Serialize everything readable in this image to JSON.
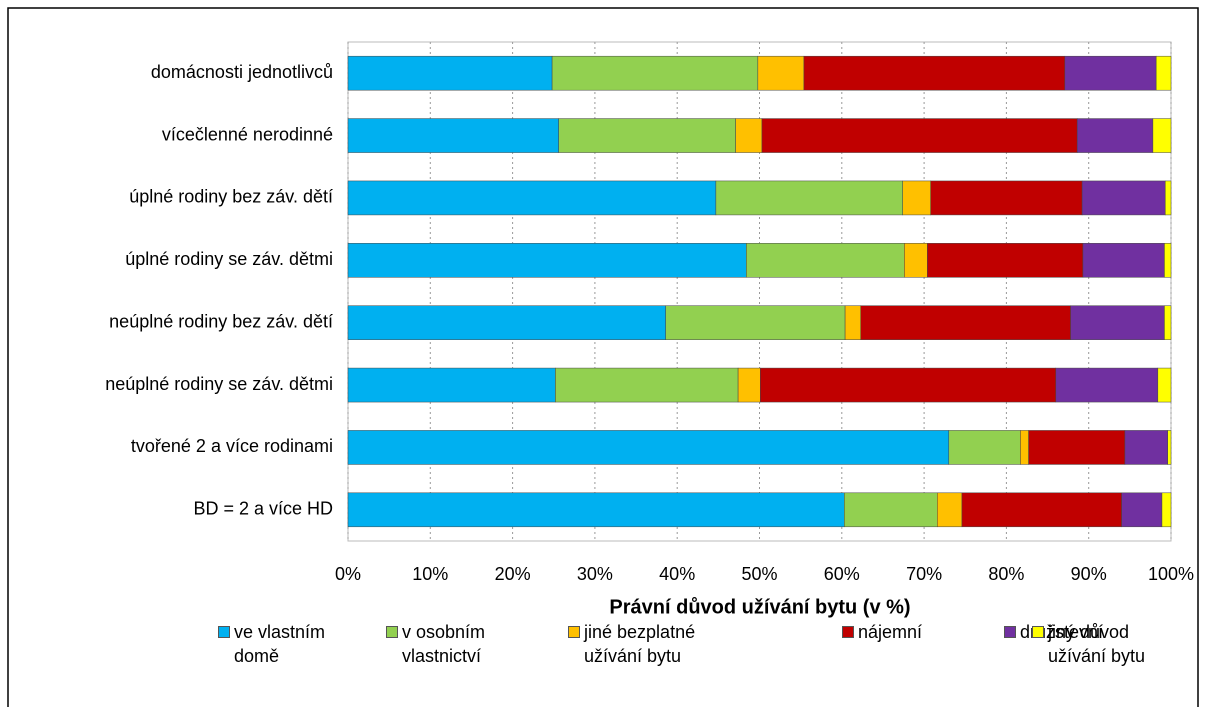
{
  "chart_data": {
    "type": "stacked-bar",
    "xlabel": "Právní důvod užívání bytu (v %)",
    "categories": [
      "domácnosti jednotlivců",
      "vícečlenné nerodinné",
      "úplné rodiny bez záv. dětí",
      "úplné rodiny se záv. dětmi",
      "neúplné rodiny bez záv. dětí",
      "neúplné rodiny se záv. dětmi",
      "tvořené 2 a více rodinami",
      "BD = 2 a více HD"
    ],
    "series": [
      {
        "name": "ve vlastním domě",
        "color": "#00b0f0",
        "values": [
          24.8,
          25.6,
          44.7,
          48.4,
          38.6,
          25.2,
          73.0,
          60.3
        ]
      },
      {
        "name": "v osobním vlastnictví",
        "color": "#92d050",
        "values": [
          25.0,
          21.5,
          22.7,
          19.2,
          21.8,
          22.2,
          8.7,
          11.3
        ]
      },
      {
        "name": "jiné bezplatné užívání bytu",
        "color": "#ffc000",
        "values": [
          5.6,
          3.2,
          3.4,
          2.8,
          1.9,
          2.7,
          1.0,
          3.0
        ]
      },
      {
        "name": "nájemní",
        "color": "#c00000",
        "values": [
          31.7,
          38.3,
          18.4,
          18.9,
          25.5,
          35.9,
          11.7,
          19.4
        ]
      },
      {
        "name": "družstevní",
        "color": "#7030a0",
        "values": [
          11.1,
          9.2,
          10.1,
          9.9,
          11.4,
          12.4,
          5.2,
          4.9
        ]
      },
      {
        "name": "jiný důvod užívání bytu",
        "color": "#ffff00",
        "values": [
          1.8,
          2.2,
          0.7,
          0.8,
          0.8,
          1.6,
          0.4,
          1.1
        ]
      }
    ],
    "xlim": [
      0,
      100
    ],
    "xticks": [
      {
        "value": 0,
        "label": "0%"
      },
      {
        "value": 10,
        "label": "10%"
      },
      {
        "value": 20,
        "label": "20%"
      },
      {
        "value": 30,
        "label": "30%"
      },
      {
        "value": 40,
        "label": "40%"
      },
      {
        "value": 50,
        "label": "50%"
      },
      {
        "value": 60,
        "label": "60%"
      },
      {
        "value": 70,
        "label": "70%"
      },
      {
        "value": 80,
        "label": "80%"
      },
      {
        "value": 90,
        "label": "90%"
      },
      {
        "value": 100,
        "label": "100%"
      }
    ],
    "grid": true,
    "legend": "bottom"
  }
}
